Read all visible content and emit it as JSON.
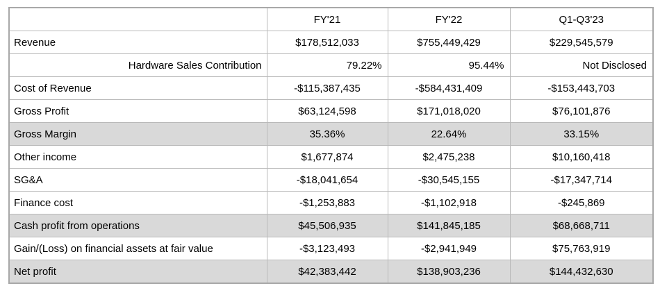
{
  "chart_data": {
    "type": "table",
    "columns": [
      "",
      "FY'21",
      "FY'22",
      "Q1-Q3'23"
    ],
    "rows": [
      {
        "label": "Revenue",
        "values": [
          "$178,512,033",
          "$755,449,429",
          "$229,545,579"
        ],
        "shaded": false,
        "label_align": "left",
        "value_align": "center"
      },
      {
        "label": "Hardware Sales Contribution",
        "values": [
          "79.22%",
          "95.44%",
          "Not Disclosed"
        ],
        "shaded": false,
        "label_align": "right",
        "value_align": "right"
      },
      {
        "label": "Cost of Revenue",
        "values": [
          "-$115,387,435",
          "-$584,431,409",
          "-$153,443,703"
        ],
        "shaded": false,
        "label_align": "left",
        "value_align": "center"
      },
      {
        "label": "Gross Profit",
        "values": [
          "$63,124,598",
          "$171,018,020",
          "$76,101,876"
        ],
        "shaded": false,
        "label_align": "left",
        "value_align": "center"
      },
      {
        "label": "Gross Margin",
        "values": [
          "35.36%",
          "22.64%",
          "33.15%"
        ],
        "shaded": true,
        "label_align": "left",
        "value_align": "center"
      },
      {
        "label": "Other income",
        "values": [
          "$1,677,874",
          "$2,475,238",
          "$10,160,418"
        ],
        "shaded": false,
        "label_align": "left",
        "value_align": "center"
      },
      {
        "label": "SG&A",
        "values": [
          "-$18,041,654",
          "-$30,545,155",
          "-$17,347,714"
        ],
        "shaded": false,
        "label_align": "left",
        "value_align": "center"
      },
      {
        "label": "Finance cost",
        "values": [
          "-$1,253,883",
          "-$1,102,918",
          "-$245,869"
        ],
        "shaded": false,
        "label_align": "left",
        "value_align": "center"
      },
      {
        "label": "Cash profit from operations",
        "values": [
          "$45,506,935",
          "$141,845,185",
          "$68,668,711"
        ],
        "shaded": true,
        "label_align": "left",
        "value_align": "center"
      },
      {
        "label": "Gain/(Loss) on financial assets at fair value",
        "values": [
          "-$3,123,493",
          "-$2,941,949",
          "$75,763,919"
        ],
        "shaded": false,
        "label_align": "left",
        "value_align": "center"
      },
      {
        "label": "Net profit",
        "values": [
          "$42,383,442",
          "$138,903,236",
          "$144,432,630"
        ],
        "shaded": true,
        "label_align": "left",
        "value_align": "center"
      }
    ],
    "colors": {
      "shaded_row_bg": "#d9d9d9",
      "border": "#b9b9b9",
      "outer_border": "#a8a8a8",
      "text": "#000000"
    },
    "layout_hints": {
      "grid": true,
      "header_position": "top",
      "shaded_row_indices": [
        4,
        8,
        10
      ]
    }
  }
}
